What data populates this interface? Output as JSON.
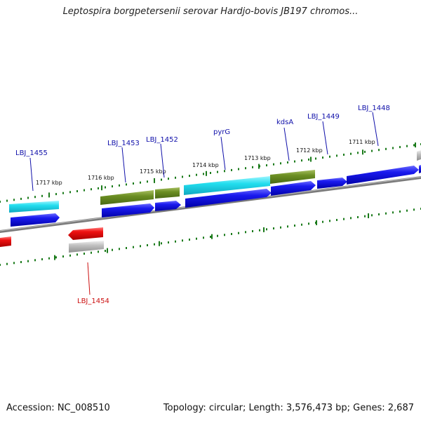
{
  "title": "Leptospira borgpetersenii serovar Hardjo-bovis JB197 chromos...",
  "footer": {
    "accession": "Accession: NC_008510",
    "stats": "Topology: circular; Length: 3,576,473 bp; Genes: 2,687"
  },
  "colors": {
    "forward_gene": "#1a1aee",
    "reverse_gene": "#ee1111",
    "forward_label": "#1010aa",
    "reverse_label": "#cc1111",
    "cyan_feature": "#22ddee",
    "olive_feature": "#6b8e23",
    "grey_feature": "#c0c0c0",
    "tick": "#1a7a1a",
    "backbone": "#808080"
  },
  "ticks": [
    "1717 kbp",
    "1716 kbp",
    "1715 kbp",
    "1714 kbp",
    "1713 kbp",
    "1712 kbp",
    "1711 kbp"
  ],
  "gene_labels": [
    "LBJ_1455",
    "LBJ_1453",
    "LBJ_1452",
    "pyrG",
    "kdsA",
    "LBJ_1449",
    "LBJ_1448",
    "LBJ_1454"
  ]
}
